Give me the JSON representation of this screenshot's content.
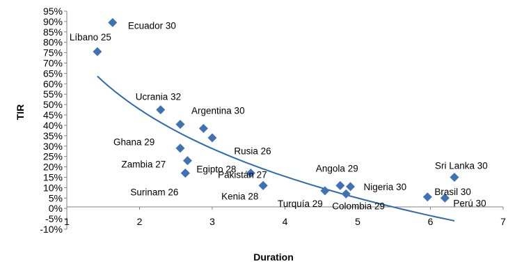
{
  "chart_data": {
    "type": "scatter",
    "title": "",
    "xlabel": "Duration",
    "ylabel": "TIR",
    "xlim": [
      1,
      7
    ],
    "ylim": [
      -10,
      95
    ],
    "x_ticks": [
      1,
      2,
      3,
      4,
      5,
      6,
      7
    ],
    "y_ticks": [
      -10,
      -5,
      0,
      5,
      10,
      15,
      20,
      25,
      30,
      35,
      40,
      45,
      50,
      55,
      60,
      65,
      70,
      75,
      80,
      85,
      90,
      95
    ],
    "y_tick_labels": [
      "-10%",
      "-5%",
      "0%",
      "5%",
      "10%",
      "15%",
      "20%",
      "25%",
      "30%",
      "35%",
      "40%",
      "45%",
      "50%",
      "55%",
      "60%",
      "65%",
      "70%",
      "75%",
      "80%",
      "85%",
      "90%",
      "95%"
    ],
    "grid": false,
    "legend": "none",
    "marker_color": "#3F72B5",
    "points": [
      {
        "label": "Ecuador 30",
        "x": 1.63,
        "y": 89.5
      },
      {
        "label": "Líbano 25",
        "x": 1.42,
        "y": 75.5
      },
      {
        "label": "Ucrania 32",
        "x": 2.29,
        "y": 47.5
      },
      {
        "label": "Argentina 30",
        "x": 2.56,
        "y": 40.5
      },
      {
        "label": "",
        "x": 2.88,
        "y": 38.5
      },
      {
        "label": "",
        "x": 3.0,
        "y": 34.0
      },
      {
        "label": "Ghana 29",
        "x": 2.56,
        "y": 29.0
      },
      {
        "label": "Zambia 27",
        "x": 2.66,
        "y": 23.0
      },
      {
        "label": "Egipto 28",
        "x": 2.63,
        "y": 17.0
      },
      {
        "label": "Rusia 26",
        "x": 3.53,
        "y": 17.0
      },
      {
        "label": "Pakistán 27",
        "x": 3.7,
        "y": 11.0
      },
      {
        "label": "Surinam 26",
        "x": 2.63,
        "y": 17.0
      },
      {
        "label": "Kenia 28",
        "x": 3.7,
        "y": 11.0
      },
      {
        "label": "Turquía 29",
        "x": 4.55,
        "y": 8.5
      },
      {
        "label": "Angola 29",
        "x": 4.76,
        "y": 11.0
      },
      {
        "label": "Nigeria 30",
        "x": 4.9,
        "y": 10.5
      },
      {
        "label": "Colombia 29",
        "x": 4.84,
        "y": 7.0
      },
      {
        "label": "Sri Lanka 30",
        "x": 6.33,
        "y": 15.0
      },
      {
        "label": "Brasil 30",
        "x": 5.96,
        "y": 5.5
      },
      {
        "label": "Perú 30",
        "x": 6.2,
        "y": 5.0
      }
    ],
    "trendline": {
      "type": "logarithmic",
      "x_range": [
        1.42,
        6.33
      ],
      "a": 80.0,
      "b": -46.6
    }
  }
}
